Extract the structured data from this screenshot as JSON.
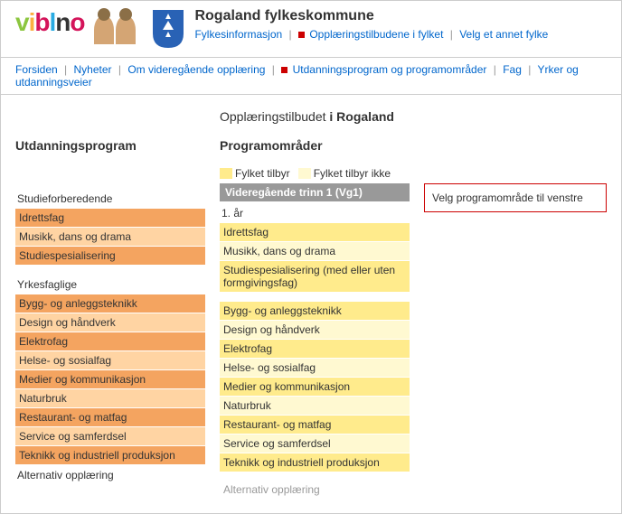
{
  "logo": {
    "parts": [
      {
        "t": "v",
        "c": "#8cc63f"
      },
      {
        "t": "i",
        "c": "#fbb040"
      },
      {
        "t": "b",
        "c": "#d4145a"
      },
      {
        "t": "l",
        "c": "#29abe2"
      },
      {
        "t": "n",
        "c": "#333"
      },
      {
        "t": "o",
        "c": "#d4145a"
      }
    ]
  },
  "header": {
    "title": "Rogaland fylkeskommune",
    "links": {
      "fylkesinfo": "Fylkesinformasjon",
      "oppl": "Opplæringstilbudene i fylket",
      "velg": "Velg et annet fylke"
    }
  },
  "nav": {
    "forsiden": "Forsiden",
    "nyheter": "Nyheter",
    "omvid": "Om videregående opplæring",
    "utdprog": "Utdanningsprogram og programområder",
    "fag": "Fag",
    "yrker": "Yrker og utdanningsveier"
  },
  "page_title_pre": "Opplæringstilbudet ",
  "page_title_bold": "i Rogaland",
  "left": {
    "title": "Utdanningsprogram",
    "g1_label": "Studieforberedende",
    "g1_items": [
      "Idrettsfag",
      "Musikk, dans og drama",
      "Studiespesialisering"
    ],
    "g2_label": "Yrkesfaglige",
    "g2_items": [
      "Bygg- og anleggsteknikk",
      "Design og håndverk",
      "Elektrofag",
      "Helse- og sosialfag",
      "Medier og kommunikasjon",
      "Naturbruk",
      "Restaurant- og matfag",
      "Service og samferdsel",
      "Teknikk og industriell produksjon"
    ],
    "g3_label": "Alternativ opplæring"
  },
  "mid": {
    "title": "Programområder",
    "legend1": "Fylket tilbyr",
    "legend2": "Fylket tilbyr ikke",
    "vg_head": "Videregående trinn 1 (Vg1)",
    "year": "1. år",
    "g1_items": [
      "Idrettsfag",
      "Musikk, dans og drama",
      "Studiespesialisering (med eller uten formgivingsfag)"
    ],
    "g2_items": [
      "Bygg- og anleggsteknikk",
      "Design og håndverk",
      "Elektrofag",
      "Helse- og sosialfag",
      "Medier og kommunikasjon",
      "Naturbruk",
      "Restaurant- og matfag",
      "Service og samferdsel",
      "Teknikk og industriell produksjon"
    ],
    "alt": "Alternativ opplæring"
  },
  "right": {
    "info": "Velg programområde til venstre"
  },
  "crest_color": "#2962b5"
}
